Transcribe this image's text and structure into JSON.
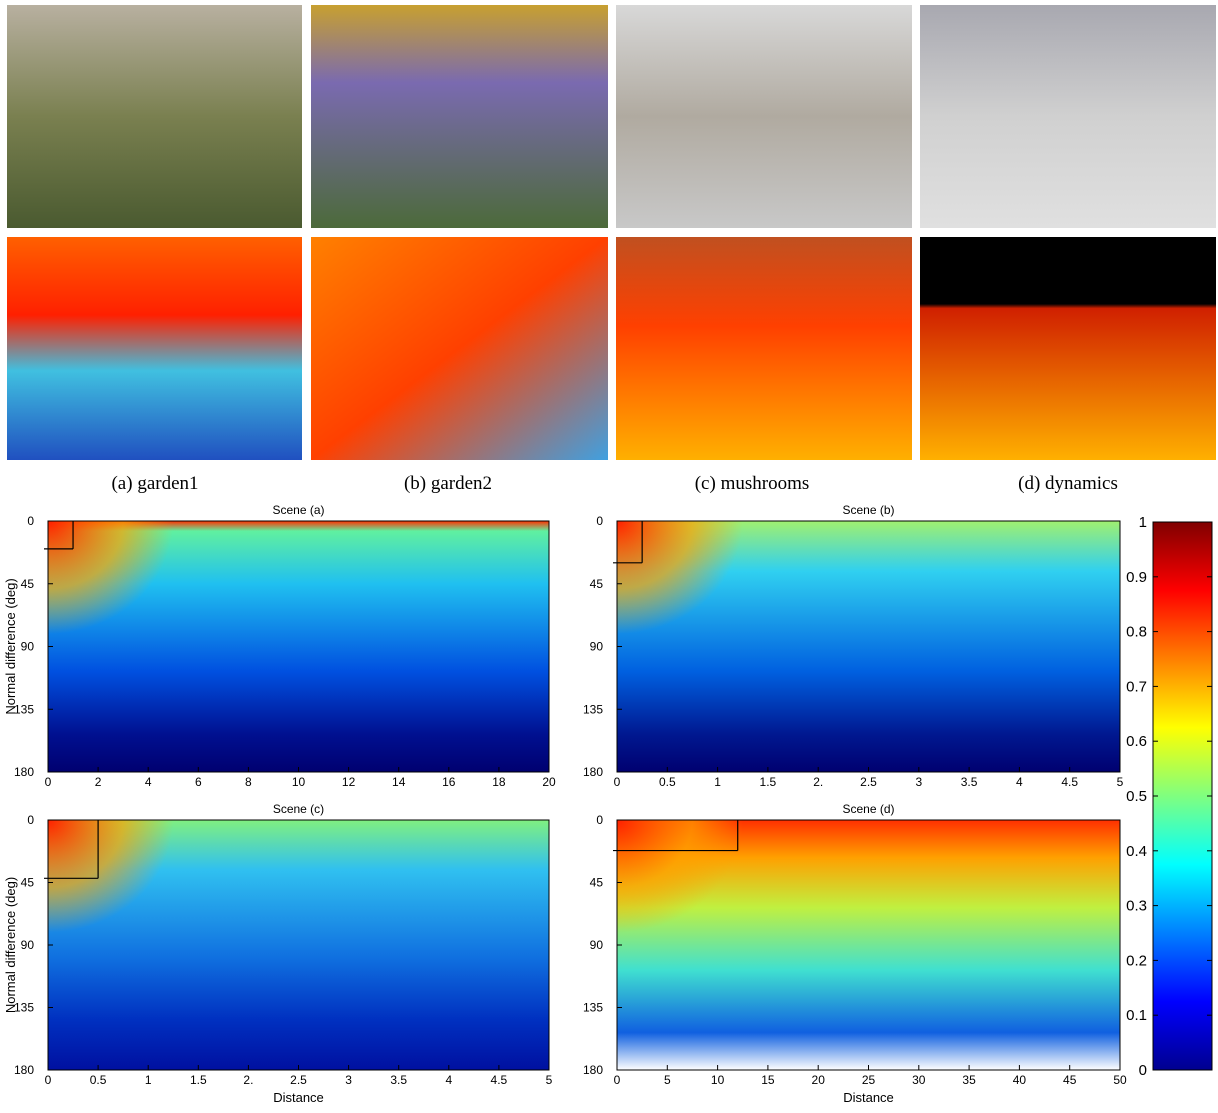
{
  "figures": {
    "captions": [
      "(a) garden1",
      "(b) garden2",
      "(c) mushrooms",
      "(d) dynamics"
    ]
  },
  "chart_data": [
    {
      "type": "heatmap",
      "title": "Scene (a)",
      "ylabel": "Normal difference (deg)",
      "xlim": [
        0,
        20
      ],
      "xticks": [
        0,
        2,
        4,
        6,
        8,
        10,
        12,
        14,
        16,
        18,
        20
      ],
      "ylim": [
        0,
        180
      ],
      "yticks": [
        0,
        45,
        90,
        135,
        180
      ],
      "y_inverted": true,
      "crosshair": {
        "x": 1,
        "y": 20
      }
    },
    {
      "type": "heatmap",
      "title": "Scene (b)",
      "xlim": [
        0,
        5
      ],
      "xticks": [
        0,
        0.5,
        1,
        1.5,
        {
          "value": 2,
          "label": "2."
        },
        2.5,
        3,
        3.5,
        4,
        4.5,
        5
      ],
      "ylim": [
        0,
        180
      ],
      "yticks": [
        0,
        45,
        90,
        135,
        180
      ],
      "y_inverted": true,
      "crosshair": {
        "x": 0.25,
        "y": 30
      }
    },
    {
      "type": "heatmap",
      "title": "Scene (c)",
      "xlabel": "Distance",
      "ylabel": "Normal difference (deg)",
      "xlim": [
        0,
        5
      ],
      "xticks": [
        0,
        0.5,
        1,
        1.5,
        {
          "value": 2,
          "label": "2."
        },
        2.5,
        3,
        3.5,
        4,
        4.5,
        5
      ],
      "ylim": [
        0,
        180
      ],
      "yticks": [
        0,
        45,
        90,
        135,
        180
      ],
      "y_inverted": true,
      "crosshair": {
        "x": 0.5,
        "y": 42
      }
    },
    {
      "type": "heatmap",
      "title": "Scene (d)",
      "xlabel": "Distance",
      "xlim": [
        0,
        50
      ],
      "xticks": [
        0,
        5,
        10,
        15,
        20,
        25,
        30,
        35,
        40,
        45,
        50
      ],
      "ylim": [
        0,
        180
      ],
      "yticks": [
        0,
        45,
        90,
        135,
        180
      ],
      "y_inverted": true,
      "crosshair": {
        "x": 12,
        "y": 22
      }
    },
    {
      "type": "colorbar",
      "ylim": [
        0,
        1
      ],
      "yticks": [
        0,
        0.1,
        0.2,
        0.3,
        0.4,
        0.5,
        0.6,
        0.7,
        0.8,
        0.9,
        1
      ]
    }
  ]
}
